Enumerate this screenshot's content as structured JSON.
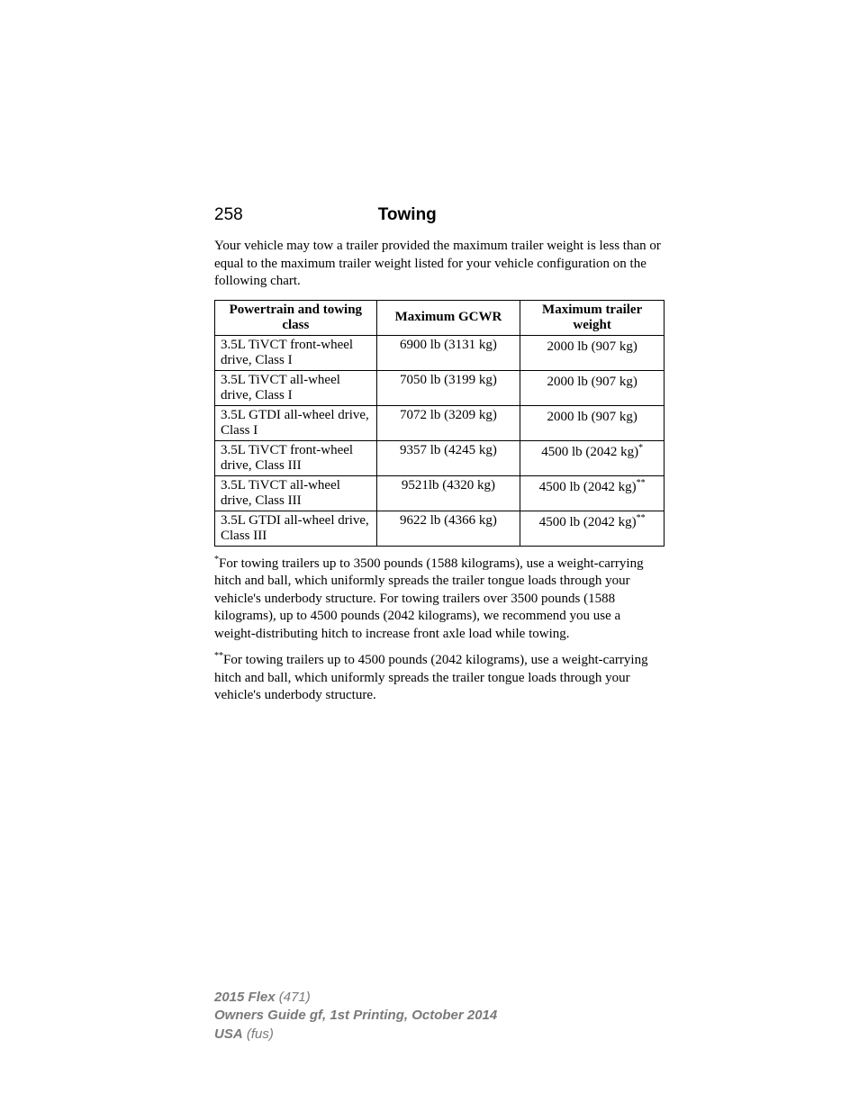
{
  "header": {
    "page_number": "258",
    "title": "Towing"
  },
  "intro": "Your vehicle may tow a trailer provided the maximum trailer weight is less than or equal to the maximum trailer weight listed for your vehicle configuration on the following chart.",
  "table": {
    "columns": [
      "Powertrain and towing class",
      "Maximum GCWR",
      "Maximum trailer weight"
    ],
    "rows": [
      {
        "c1": "3.5L TiVCT front-wheel drive, Class I",
        "c2": "6900 lb (3131 kg)",
        "c3": "2000 lb (907 kg)",
        "sup": ""
      },
      {
        "c1": "3.5L TiVCT all-wheel drive, Class I",
        "c2": "7050 lb (3199 kg)",
        "c3": "2000 lb (907 kg)",
        "sup": ""
      },
      {
        "c1": "3.5L GTDI all-wheel drive, Class I",
        "c2": "7072 lb (3209 kg)",
        "c3": "2000 lb (907 kg)",
        "sup": ""
      },
      {
        "c1": "3.5L TiVCT front-wheel drive, Class III",
        "c2": "9357 lb (4245 kg)",
        "c3": "4500 lb (2042 kg)",
        "sup": "*"
      },
      {
        "c1": "3.5L TiVCT all-wheel drive, Class III",
        "c2": "9521lb (4320 kg)",
        "c3": "4500 lb (2042 kg)",
        "sup": "**"
      },
      {
        "c1": "3.5L GTDI all-wheel drive, Class III",
        "c2": "9622 lb (4366 kg)",
        "c3": "4500 lb (2042 kg)",
        "sup": "**"
      }
    ]
  },
  "footnote1": {
    "marker": "*",
    "text": "For towing trailers up to 3500 pounds (1588 kilograms), use a weight-carrying hitch and ball, which uniformly spreads the trailer tongue loads through your vehicle's underbody structure. For towing trailers over 3500 pounds (1588 kilograms), up to 4500 pounds (2042 kilograms), we recommend you use a weight-distributing hitch to increase front axle load while towing."
  },
  "footnote2": {
    "marker": "**",
    "text": "For towing trailers up to 4500 pounds (2042 kilograms), use a weight-carrying hitch and ball, which uniformly spreads the trailer tongue loads through your vehicle's underbody structure."
  },
  "footer": {
    "line1_bold": "2015 Flex",
    "line1_rest": " (471)",
    "line2": "Owners Guide gf, 1st Printing, October 2014",
    "line3_bold": "USA",
    "line3_rest": " (fus)"
  }
}
